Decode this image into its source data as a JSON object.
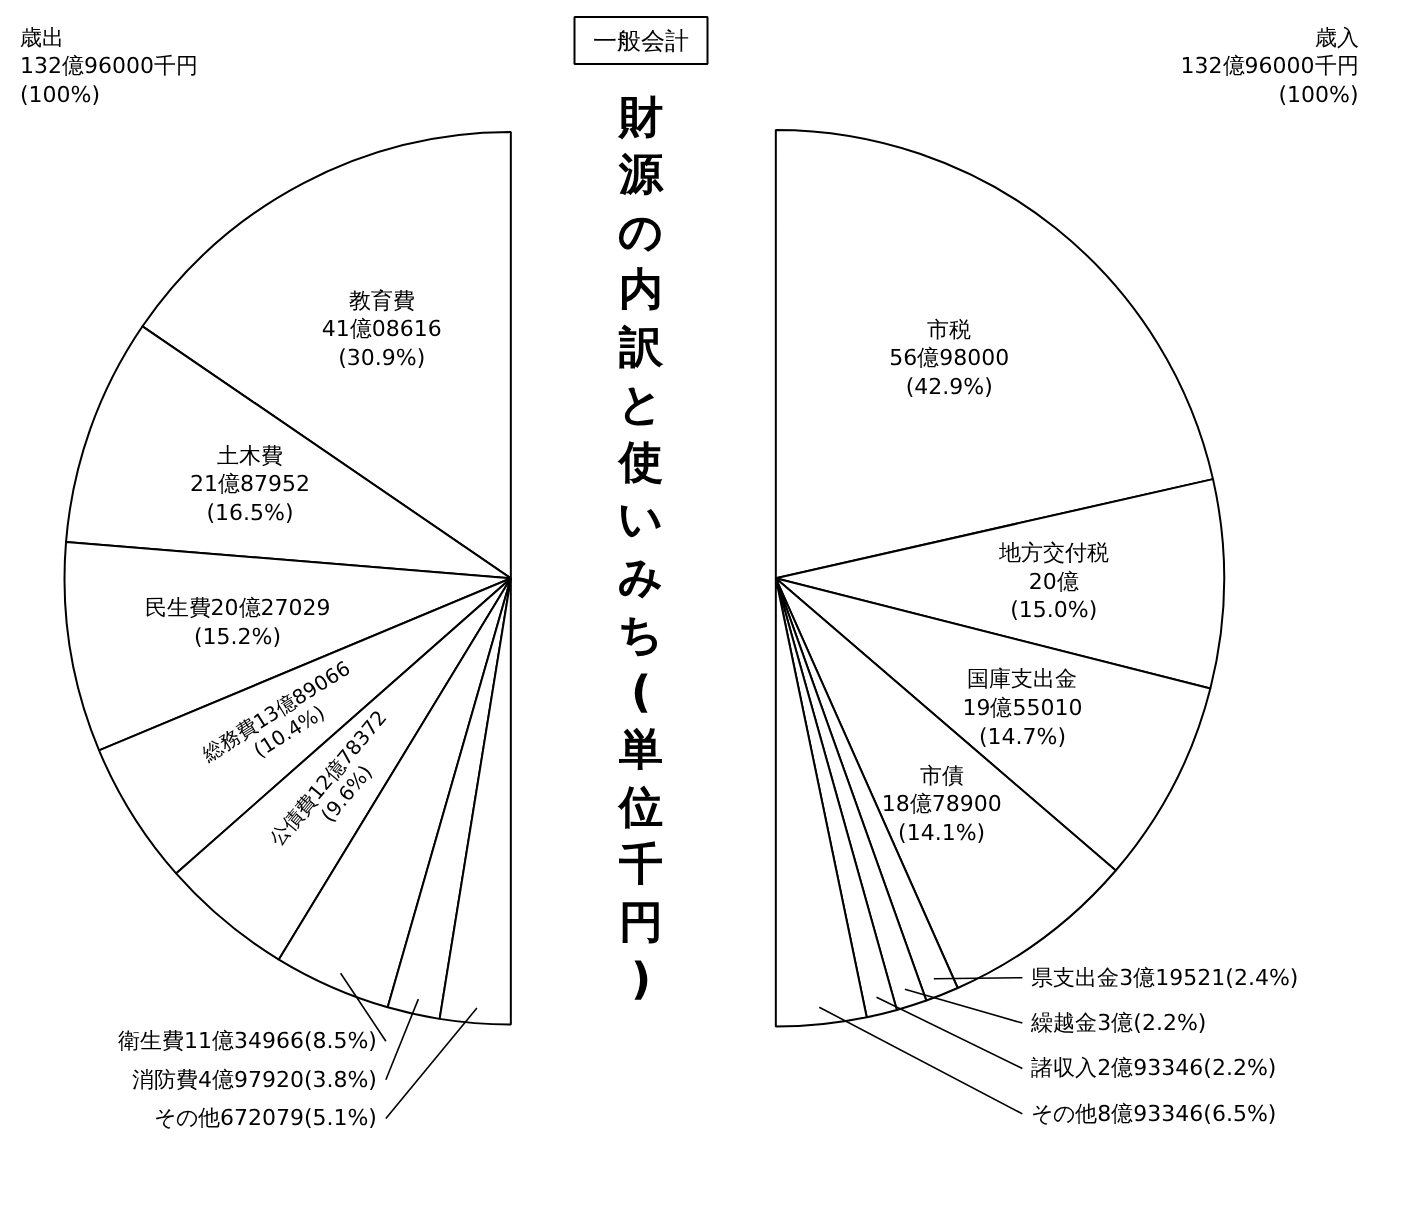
{
  "chart_data": [
    {
      "type": "pie",
      "title": "歳出\n132億96000千円\n(100%)",
      "annotations": [
        "一般会計",
        "財源の内訳と使いみち(単位千円)"
      ],
      "categories": [
        "教育費\n41億08616\n(30.9%)",
        "土木費\n21億87952\n(16.5%)",
        "民生費20億27029\n(15.2%)",
        "総務費13億89066\n(10.4%)",
        "公債費12億78372\n(9.6%)",
        "衛生費11億34966(8.5%)",
        "消防費4億97920(3.8%)",
        "その他672079(5.1%)"
      ],
      "values": [
        30.9,
        16.5,
        15.2,
        10.4,
        9.6,
        8.5,
        3.8,
        5.1
      ],
      "colors": [
        "#ffffff",
        "#ffffff",
        "#ffffff",
        "#ffffff",
        "#ffffff",
        "#ffffff",
        "#ffffff",
        "#ffffff"
      ]
    },
    {
      "type": "pie",
      "title": "歳入\n132億96000千円\n(100%)",
      "categories": [
        "市税\n56億98000\n(42.9%)",
        "地方交付税\n20億\n(15.0%)",
        "国庫支出金\n19億55010\n(14.7%)",
        "市債\n18億78900\n(14.1%)",
        "県支出金3億19521(2.4%)",
        "繰越金3億(2.2%)",
        "諸収入2億93346(2.2%)",
        "その他8億93346(6.5%)"
      ],
      "values": [
        42.9,
        15.0,
        14.7,
        14.1,
        2.4,
        2.2,
        2.2,
        6.5
      ],
      "colors": [
        "#ffffff",
        "#ffffff",
        "#ffffff",
        "#ffffff",
        "#ffffff",
        "#ffffff",
        "#ffffff",
        "#ffffff"
      ]
    }
  ]
}
